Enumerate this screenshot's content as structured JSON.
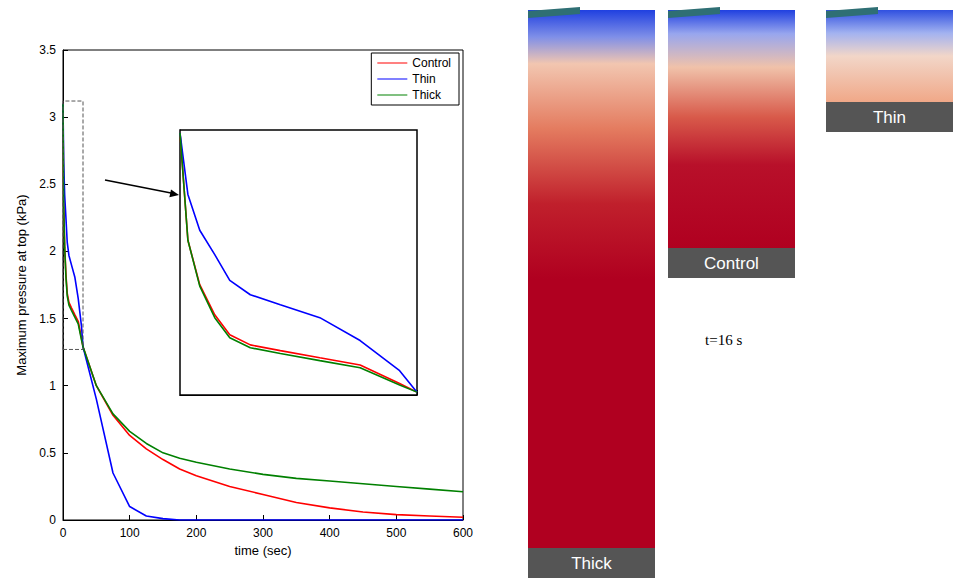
{
  "chart_data": [
    {
      "type": "line",
      "xlabel": "time (sec)",
      "ylabel": "Maximum pressure at top (kPa)",
      "x": [
        0,
        1,
        2.5,
        4.4,
        6.3,
        8.9,
        12.7,
        17.7,
        22.8,
        27.8,
        30,
        50,
        75,
        100,
        125,
        150,
        175,
        200,
        250,
        300,
        350,
        400,
        450,
        500,
        550,
        600
      ],
      "series": [
        {
          "name": "Control",
          "color": "#ff0000",
          "values": [
            3.1,
            2.35,
            2.04,
            1.83,
            1.69,
            1.62,
            1.58,
            1.53,
            1.48,
            1.35,
            1.29,
            1.0,
            0.78,
            0.63,
            0.53,
            0.45,
            0.38,
            0.33,
            0.25,
            0.19,
            0.13,
            0.09,
            0.06,
            0.04,
            0.03,
            0.02
          ]
        },
        {
          "name": "Thin",
          "color": "#0000ff",
          "values": [
            3.1,
            2.67,
            2.42,
            2.25,
            2.07,
            1.97,
            1.9,
            1.81,
            1.65,
            1.44,
            1.29,
            0.9,
            0.35,
            0.1,
            0.03,
            0.01,
            0,
            0,
            0,
            0,
            0,
            0,
            0,
            0,
            0,
            0
          ]
        },
        {
          "name": "Thick",
          "color": "#008000",
          "values": [
            3.1,
            2.35,
            2.03,
            1.81,
            1.67,
            1.6,
            1.56,
            1.51,
            1.46,
            1.34,
            1.29,
            1.0,
            0.79,
            0.66,
            0.57,
            0.5,
            0.46,
            0.43,
            0.38,
            0.34,
            0.31,
            0.29,
            0.27,
            0.25,
            0.23,
            0.21
          ]
        }
      ],
      "xlim": [
        0,
        600
      ],
      "xticks": [
        0,
        100,
        200,
        300,
        400,
        500,
        600
      ],
      "ylim": [
        0,
        3.5
      ],
      "yticks": [
        0,
        0.5,
        1,
        1.5,
        2,
        2.5,
        3,
        3.5
      ],
      "legend": "upper right",
      "grid": false
    },
    {
      "type": "line",
      "x": [
        0,
        1,
        2.5,
        4.4,
        6.3,
        8.9,
        12.7,
        17.7,
        22.8,
        27.8,
        30
      ],
      "series": [
        {
          "name": "Control",
          "color": "#ff0000",
          "values": [
            3.1,
            2.35,
            2.04,
            1.83,
            1.69,
            1.62,
            1.58,
            1.53,
            1.48,
            1.35,
            1.29
          ]
        },
        {
          "name": "Thin",
          "color": "#0000ff",
          "values": [
            3.1,
            2.67,
            2.42,
            2.25,
            2.07,
            1.97,
            1.9,
            1.81,
            1.65,
            1.44,
            1.29
          ]
        },
        {
          "name": "Thick",
          "color": "#008000",
          "values": [
            3.1,
            2.35,
            2.03,
            1.81,
            1.67,
            1.6,
            1.56,
            1.51,
            1.46,
            1.34,
            1.29
          ]
        }
      ],
      "xlim": [
        0,
        30
      ],
      "xticks": [
        0,
        5,
        10,
        15,
        20,
        25,
        30
      ],
      "ylim": [
        1.27,
        3.12
      ],
      "yticks": [
        1.5,
        2,
        2.5,
        3
      ],
      "tick_labels": false,
      "grid": false
    }
  ],
  "panels": {
    "labels": [
      "Thick",
      "Control",
      "Thin"
    ],
    "time_label": "t=16 s"
  }
}
